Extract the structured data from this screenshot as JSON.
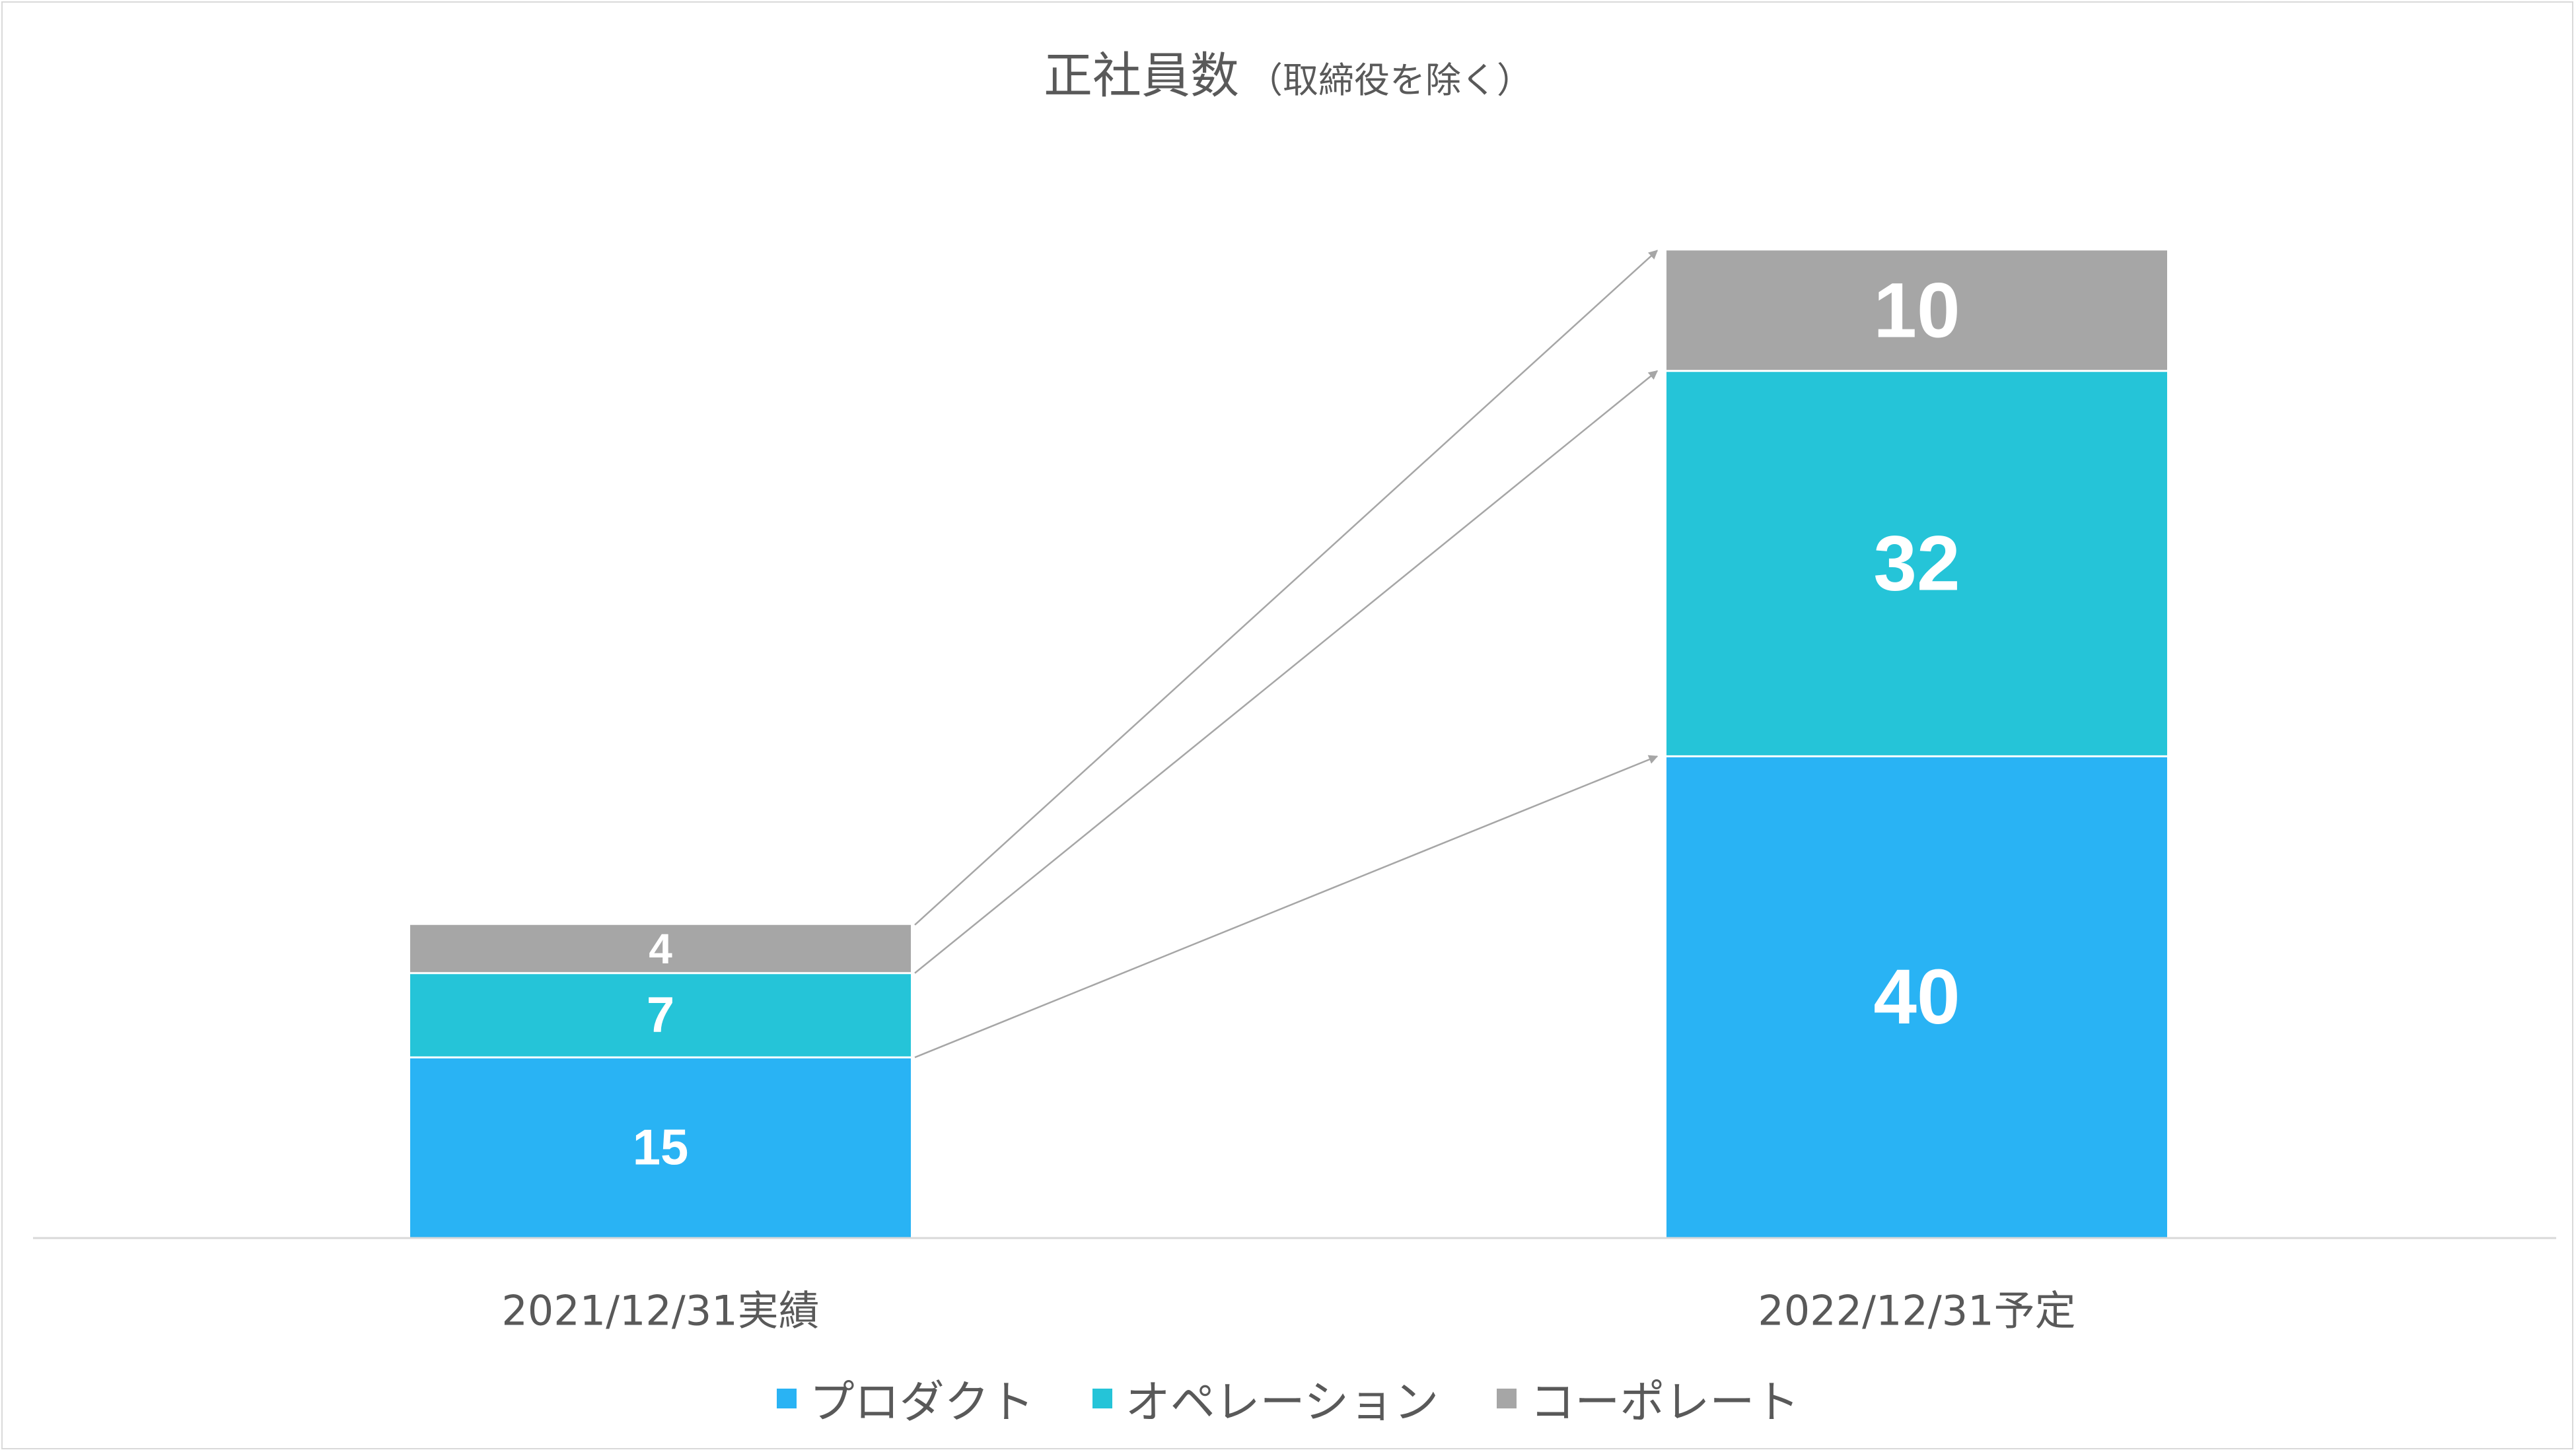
{
  "title": {
    "main": "正社員数",
    "sub": "（取締役を除く）"
  },
  "colors": {
    "product": "#29b3f4",
    "operation": "#25c4d8",
    "corporate": "#a6a6a6",
    "axis": "#d9d9d9",
    "arrow": "#a6a6a6"
  },
  "chart_data": {
    "type": "bar",
    "stacked": true,
    "categories": [
      "2021/12/31実績",
      "2022/12/31予定"
    ],
    "series": [
      {
        "name": "プロダクト",
        "values": [
          15,
          40
        ]
      },
      {
        "name": "オペレーション",
        "values": [
          7,
          32
        ]
      },
      {
        "name": "コーポレート",
        "values": [
          4,
          10
        ]
      }
    ],
    "data_labels": true,
    "legend_position": "bottom",
    "grid": false
  },
  "legend": [
    {
      "label": "プロダクト",
      "color": "#29b3f4"
    },
    {
      "label": "オペレーション",
      "color": "#25c4d8"
    },
    {
      "label": "コーポレート",
      "color": "#a6a6a6"
    }
  ]
}
